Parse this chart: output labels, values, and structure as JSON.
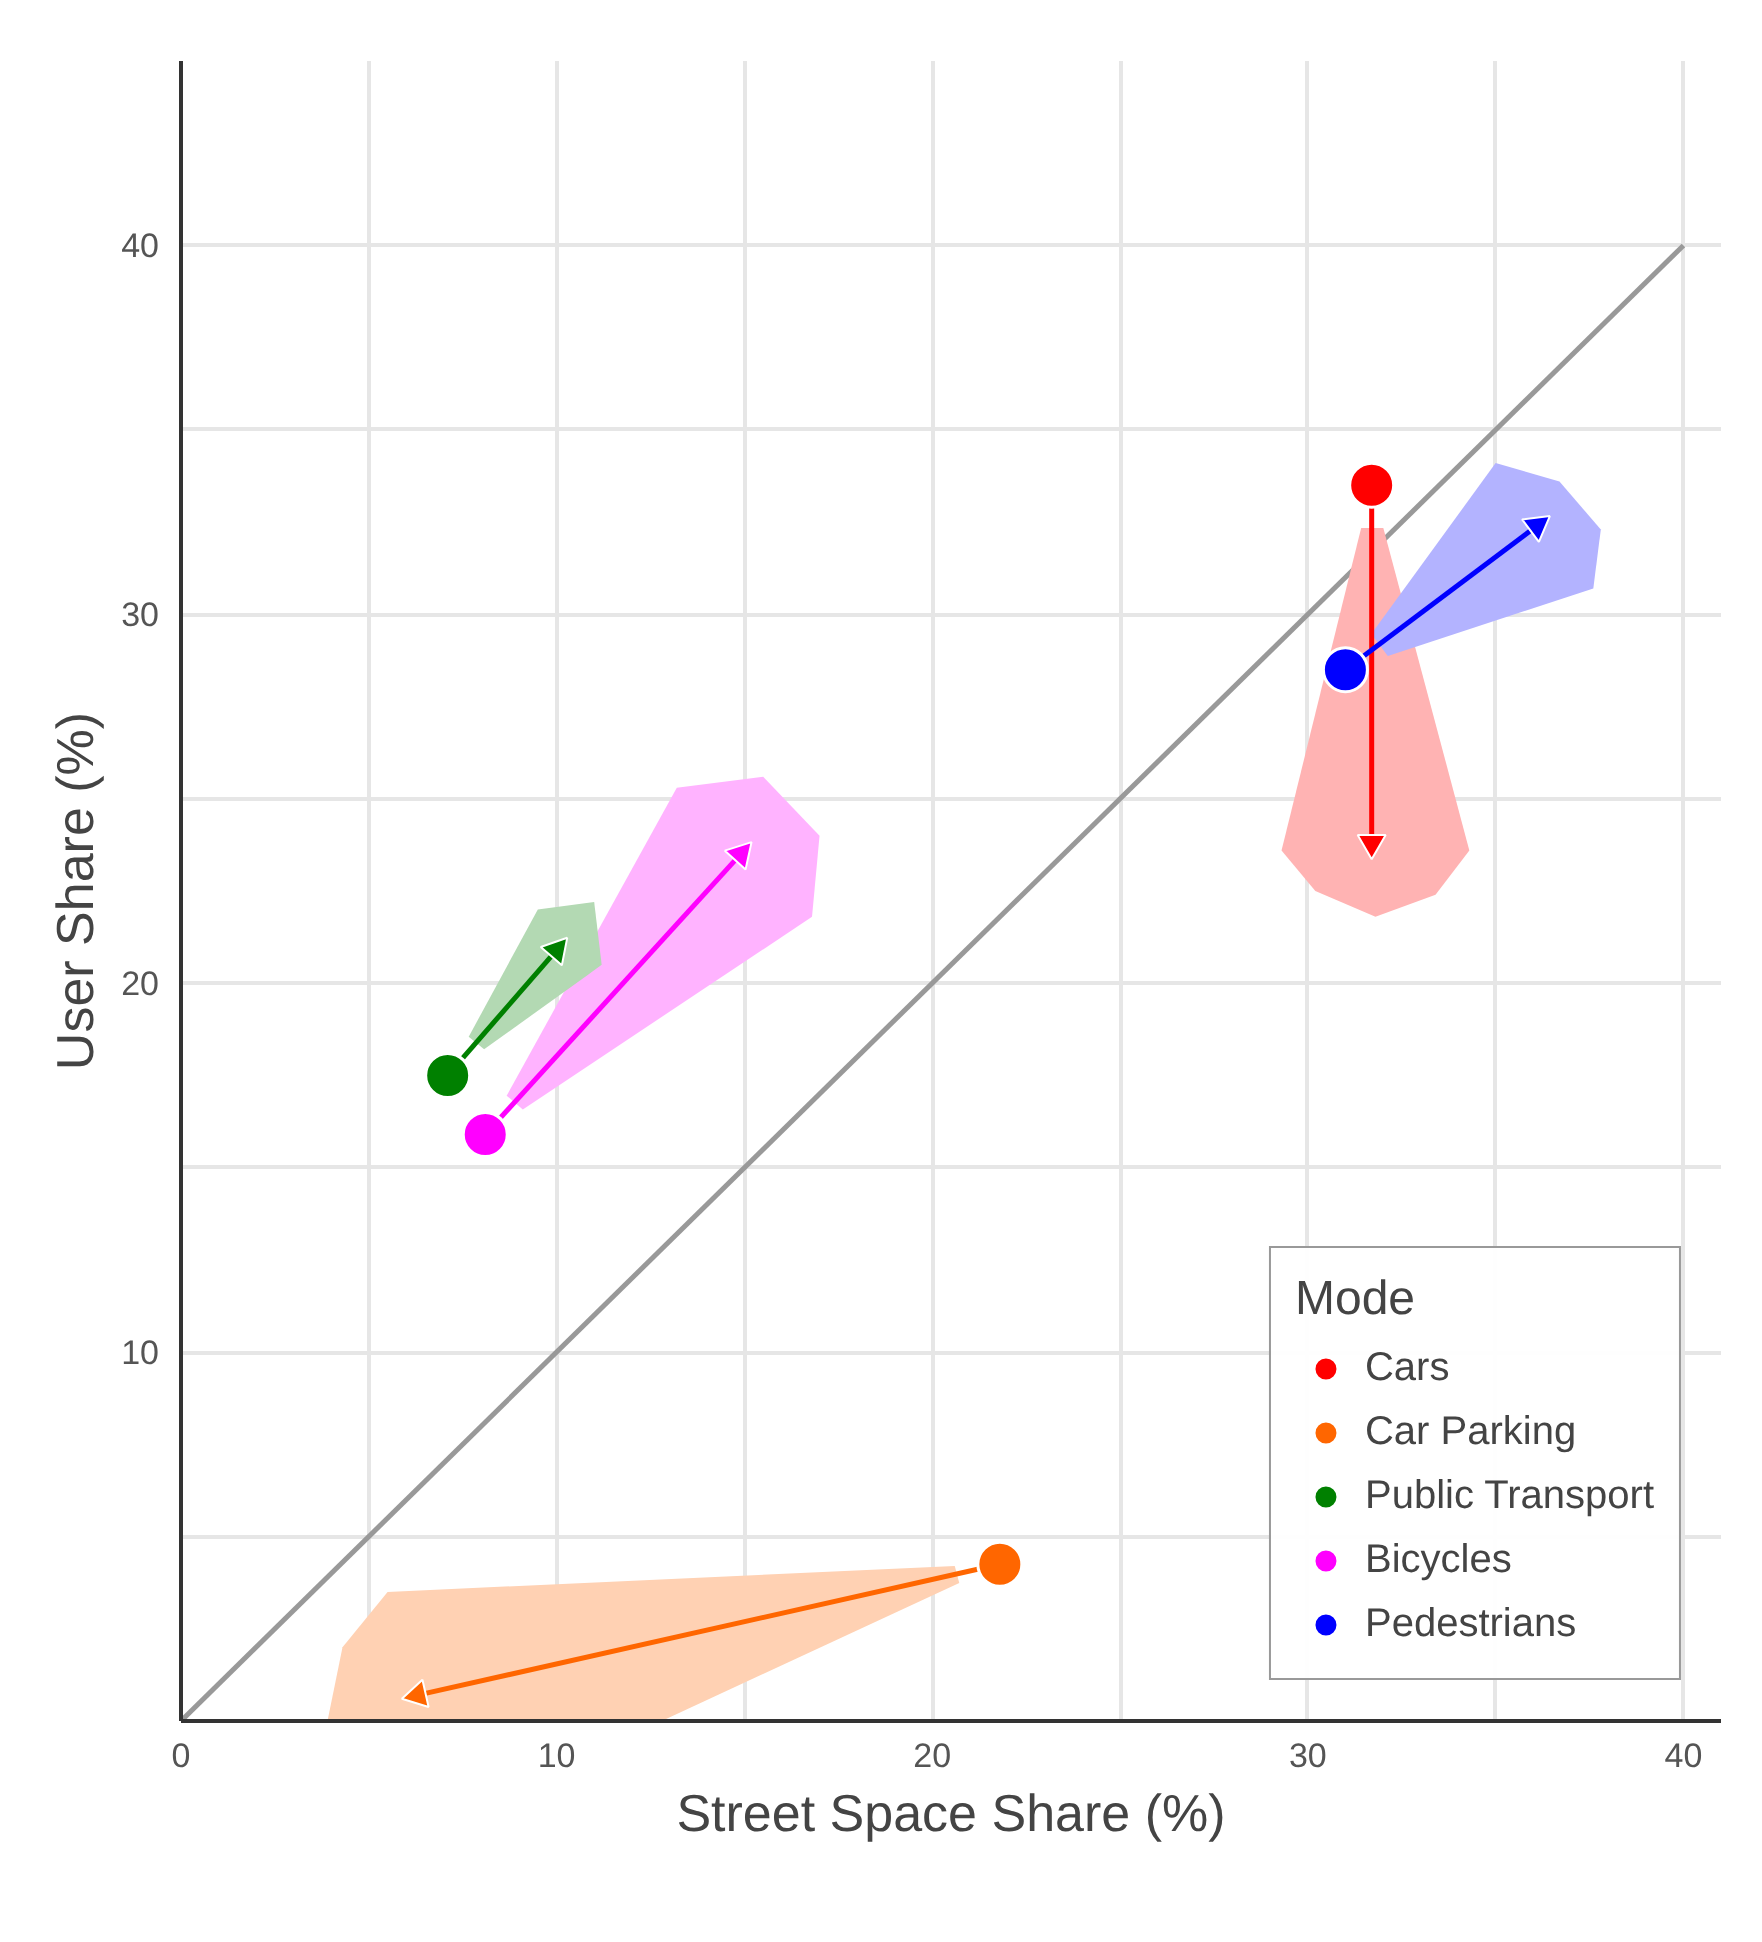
{
  "chart_data": {
    "type": "scatter",
    "xlabel": "Street Space Share (%)",
    "ylabel": "User Share (%)",
    "legend_title": "Mode",
    "legend": "bottom right",
    "grid": true,
    "xlim": [
      0,
      41
    ],
    "ylim": [
      0,
      45
    ],
    "xticks": [
      0,
      {
        "value": 5,
        "label": null
      },
      10,
      {
        "value": 15,
        "label": null
      },
      20,
      {
        "value": 25,
        "label": null
      },
      30,
      {
        "value": 35,
        "label": null
      },
      40
    ],
    "yticks": [
      {
        "value": 0,
        "label": null
      },
      {
        "value": 5,
        "label": null
      },
      10,
      {
        "value": 15,
        "label": null
      },
      20,
      {
        "value": 25,
        "label": null
      },
      30,
      {
        "value": 35,
        "label": null
      },
      40
    ],
    "series": [
      {
        "type": "line",
        "color": "#999999",
        "x": [
          0,
          40
        ],
        "values": [
          0,
          40
        ],
        "marker": "none"
      },
      {
        "type": "area",
        "color": "#ffb3b3",
        "x": [
          31.42,
          29.3,
          30.2,
          31.8,
          33.4,
          34.3,
          32.01
        ],
        "values": [
          32.34,
          23.6,
          22.5,
          21.8,
          22.4,
          23.6,
          32.34
        ]
      },
      {
        "type": "area",
        "color": "#ffd1b3",
        "x": [
          20.6,
          5.5,
          4.3,
          3.9,
          12.8,
          20.72
        ],
        "values": [
          4.2,
          3.5,
          2.0,
          0,
          0,
          3.74
        ]
      },
      {
        "type": "area",
        "color": "#ffb3ff",
        "x": [
          8.67,
          13.2,
          15.5,
          17.0,
          16.8,
          9.1
        ],
        "values": [
          16.95,
          25.3,
          25.6,
          24.0,
          21.8,
          16.58
        ]
      },
      {
        "type": "area",
        "color": "#b3d9b3",
        "x": [
          7.66,
          9.5,
          11.0,
          11.2,
          10.8,
          8.07
        ],
        "values": [
          18.55,
          22.0,
          22.2,
          20.5,
          20.2,
          18.21
        ]
      },
      {
        "type": "area",
        "color": "#b3b3ff",
        "x": [
          31.69,
          35.0,
          36.7,
          37.8,
          37.6,
          32.13
        ],
        "values": [
          29.47,
          34.1,
          33.6,
          32.3,
          30.7,
          28.87
        ]
      },
      {
        "type": "line",
        "color": "#ff0000",
        "x": [
          31.7,
          31.7
        ],
        "values": [
          33.5,
          23.8
        ],
        "marker": "triangle"
      },
      {
        "type": "line",
        "color": "#ff6600",
        "x": [
          21.8,
          6.3
        ],
        "values": [
          4.25,
          0.7
        ],
        "marker": "triangle"
      },
      {
        "type": "line",
        "color": "#008000",
        "x": [
          7.1,
          10.0
        ],
        "values": [
          17.5,
          20.9
        ],
        "marker": "triangle"
      },
      {
        "type": "line",
        "color": "#ff00ff",
        "x": [
          8.1,
          14.9
        ],
        "values": [
          15.9,
          23.5
        ],
        "marker": "triangle"
      },
      {
        "type": "line",
        "color": "#0000ff",
        "x": [
          31.0,
          36.1
        ],
        "values": [
          28.5,
          32.4
        ],
        "marker": "triangle"
      },
      {
        "name": "Cars",
        "color": "#ff0000",
        "x": [
          31.7
        ],
        "values": [
          33.5
        ],
        "marker": "circle"
      },
      {
        "name": "Car Parking",
        "color": "#ff6600",
        "x": [
          21.8
        ],
        "values": [
          4.25
        ],
        "marker": "circle"
      },
      {
        "name": "Public Transport",
        "color": "#008000",
        "x": [
          7.1
        ],
        "values": [
          17.5
        ],
        "marker": "circle"
      },
      {
        "name": "Bicycles",
        "color": "#ff00ff",
        "x": [
          8.1
        ],
        "values": [
          15.9
        ],
        "marker": "circle"
      },
      {
        "name": "Pedestrians",
        "color": "#0000ff",
        "x": [
          31.0
        ],
        "values": [
          28.5
        ],
        "marker": "circle"
      }
    ]
  }
}
